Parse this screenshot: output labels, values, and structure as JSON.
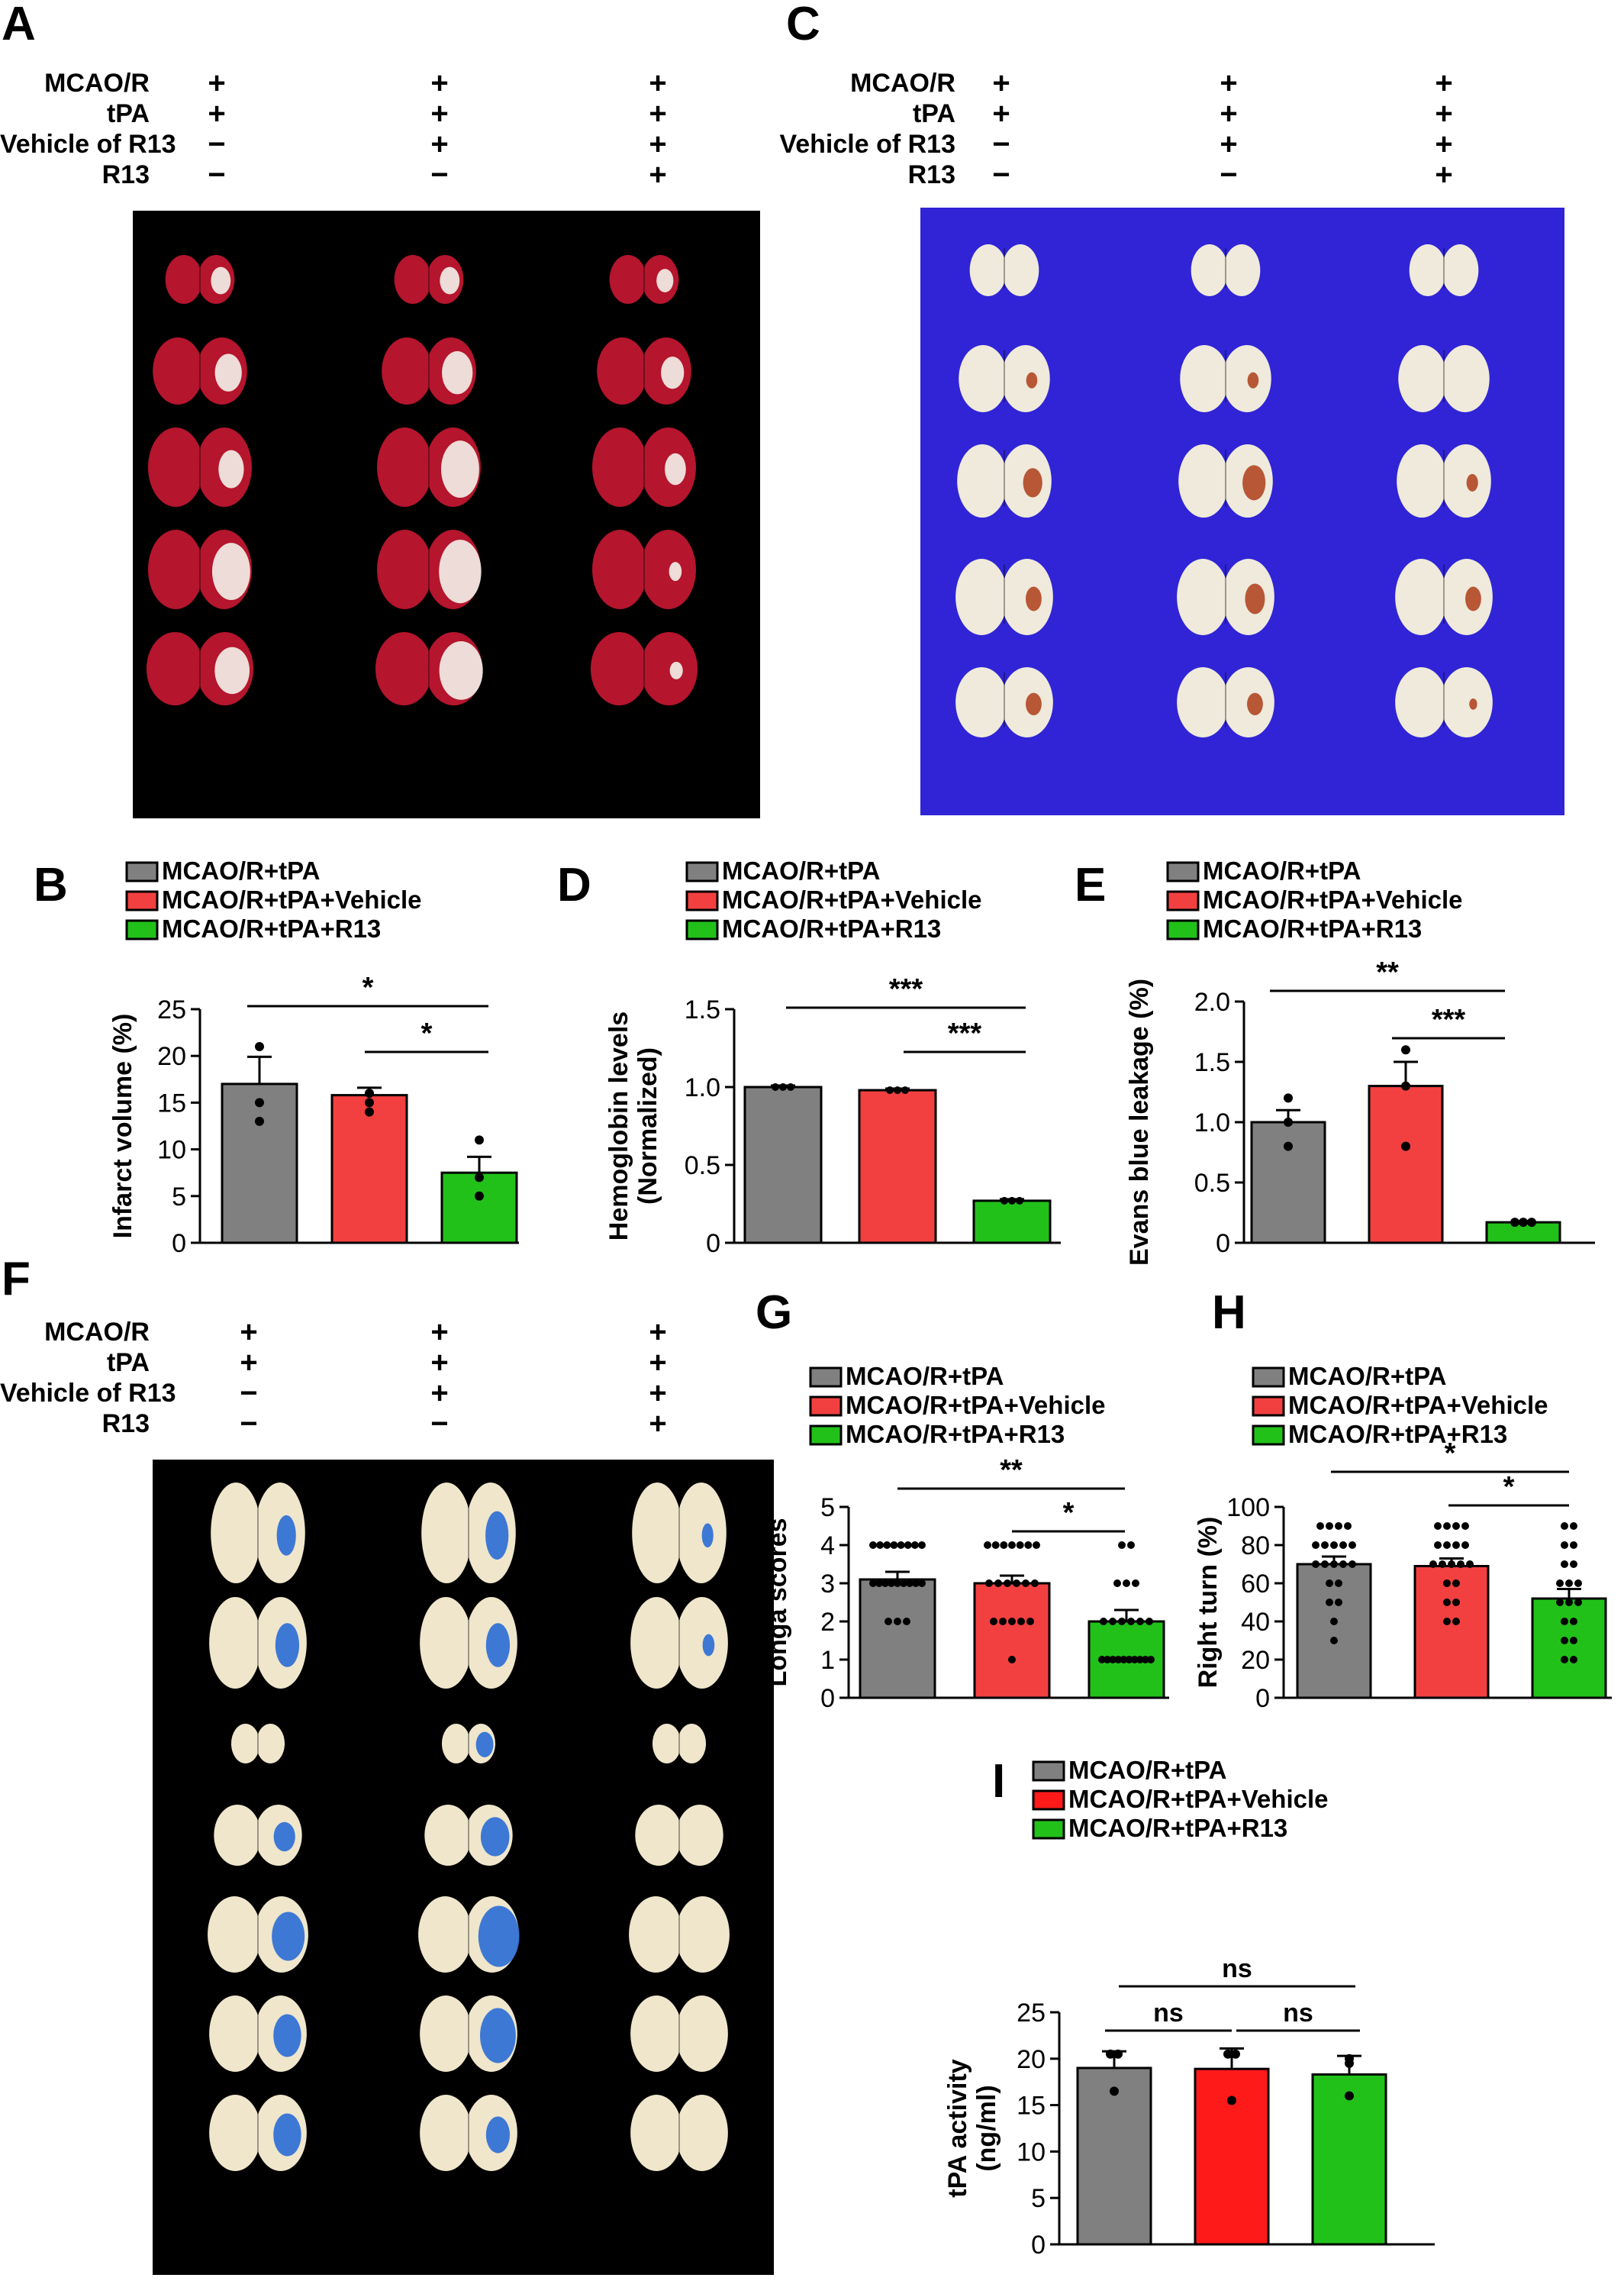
{
  "colors": {
    "gray": "#808080",
    "red": "#f24040",
    "red_bright": "#ff1a1a",
    "green": "#22c11a",
    "black": "#000000",
    "blue_bg": "#3024d6"
  },
  "conditions": {
    "rows": [
      "MCAO/R",
      "tPA",
      "Vehicle of R13",
      "R13"
    ],
    "columns": [
      [
        "+",
        "+",
        "−",
        "−"
      ],
      [
        "+",
        "+",
        "+",
        "−"
      ],
      [
        "+",
        "+",
        "+",
        "+"
      ]
    ]
  },
  "panels": {
    "A": {
      "letter": "A",
      "image": "TTC-stained coronal brain slices"
    },
    "C": {
      "letter": "C",
      "image": "Coronal brain slices showing hemorrhage"
    },
    "F": {
      "letter": "F",
      "image": "Evans blue stained brains and slices"
    }
  },
  "legend": [
    "MCAO/R+tPA",
    "MCAO/R+tPA+Vehicle",
    "MCAO/R+tPA+R13"
  ],
  "chart_data": [
    {
      "id": "B",
      "letter": "B",
      "type": "bar",
      "categories": [
        "MCAO/R+tPA",
        "MCAO/R+tPA+Vehicle",
        "MCAO/R+tPA+R13"
      ],
      "values": [
        17.0,
        15.8,
        7.5
      ],
      "errors": [
        2.9,
        0.8,
        1.7
      ],
      "points": [
        [
          21,
          15,
          13
        ],
        [
          16,
          15,
          14
        ],
        [
          11,
          7,
          5
        ]
      ],
      "ylabel": "Infarct volume (%)",
      "ylabel2": "",
      "ylim": [
        0,
        25
      ],
      "yticks": [
        "0",
        "5",
        "10",
        "15",
        "20",
        "25"
      ],
      "sig": [
        {
          "from": 0,
          "to": 2,
          "label": "*"
        },
        {
          "from": 1,
          "to": 2,
          "label": "*"
        }
      ]
    },
    {
      "id": "D",
      "letter": "D",
      "type": "bar",
      "categories": [
        "MCAO/R+tPA",
        "MCAO/R+tPA+Vehicle",
        "MCAO/R+tPA+R13"
      ],
      "values": [
        1.0,
        0.98,
        0.27
      ],
      "errors": [
        0.01,
        0.01,
        0.01
      ],
      "points": [
        [
          1.0,
          1.0,
          1.0
        ],
        [
          0.98,
          0.98,
          0.98
        ],
        [
          0.27,
          0.27,
          0.27
        ]
      ],
      "ylabel": "Hemoglobin levels",
      "ylabel2": "(Normalized)",
      "ylim": [
        0,
        1.5
      ],
      "yticks": [
        "0",
        "0.5",
        "1.0",
        "1.5"
      ],
      "sig": [
        {
          "from": 0,
          "to": 2,
          "label": "***"
        },
        {
          "from": 1,
          "to": 2,
          "label": "***"
        }
      ]
    },
    {
      "id": "E",
      "letter": "E",
      "type": "bar",
      "categories": [
        "MCAO/R+tPA",
        "MCAO/R+tPA+Vehicle",
        "MCAO/R+tPA+R13"
      ],
      "values": [
        1.0,
        1.3,
        0.17
      ],
      "errors": [
        0.1,
        0.2,
        0.01
      ],
      "points": [
        [
          1.2,
          1.0,
          0.8
        ],
        [
          1.6,
          1.3,
          0.8
        ],
        [
          0.17,
          0.17,
          0.17
        ]
      ],
      "ylabel": "Evans blue leakage (%)",
      "ylabel2": "",
      "ylim": [
        0,
        2.0
      ],
      "yticks": [
        "0",
        "0.5",
        "1.0",
        "1.5",
        "2.0"
      ],
      "sig": [
        {
          "from": 0,
          "to": 2,
          "label": "**"
        },
        {
          "from": 1,
          "to": 2,
          "label": "***"
        }
      ]
    },
    {
      "id": "G",
      "letter": "G",
      "type": "bar",
      "categories": [
        "MCAO/R+tPA",
        "MCAO/R+tPA+Vehicle",
        "MCAO/R+tPA+R13"
      ],
      "values": [
        3.1,
        3.0,
        2.0
      ],
      "errors": [
        0.2,
        0.2,
        0.3
      ],
      "points": [
        [
          4,
          4,
          4,
          4,
          4,
          4,
          4,
          4,
          3,
          3,
          3,
          3,
          3,
          3,
          3,
          3,
          3,
          2,
          2,
          2
        ],
        [
          4,
          4,
          4,
          4,
          4,
          4,
          4,
          3,
          3,
          3,
          3,
          3,
          3,
          2,
          2,
          2,
          2,
          2,
          1
        ],
        [
          4,
          4,
          3,
          3,
          3,
          2,
          2,
          2,
          2,
          2,
          2,
          1,
          1,
          1,
          1,
          1,
          1,
          1,
          1,
          1,
          1
        ]
      ],
      "ylabel": "Longa scores",
      "ylabel2": "",
      "ylim": [
        0,
        5
      ],
      "yticks": [
        "0",
        "1",
        "2",
        "3",
        "4",
        "5"
      ],
      "sig": [
        {
          "from": 0,
          "to": 2,
          "label": "**"
        },
        {
          "from": 1,
          "to": 2,
          "label": "*"
        }
      ]
    },
    {
      "id": "H",
      "letter": "H",
      "type": "bar",
      "categories": [
        "MCAO/R+tPA",
        "MCAO/R+tPA+Vehicle",
        "MCAO/R+tPA+R13"
      ],
      "values": [
        70,
        69,
        52
      ],
      "errors": [
        4,
        4,
        5
      ],
      "points": [
        [
          90,
          90,
          90,
          90,
          80,
          80,
          80,
          80,
          80,
          70,
          70,
          70,
          70,
          70,
          60,
          60,
          50,
          50,
          40,
          30
        ],
        [
          90,
          90,
          90,
          90,
          80,
          80,
          80,
          80,
          70,
          70,
          70,
          70,
          70,
          60,
          60,
          50,
          50,
          40,
          40
        ],
        [
          90,
          90,
          80,
          80,
          70,
          70,
          60,
          60,
          60,
          50,
          50,
          50,
          40,
          40,
          30,
          30,
          20,
          20
        ]
      ],
      "ylabel": "Right turn (%)",
      "ylabel2": "",
      "ylim": [
        0,
        100
      ],
      "yticks": [
        "0",
        "20",
        "40",
        "60",
        "80",
        "100"
      ],
      "sig": [
        {
          "from": 0,
          "to": 2,
          "label": "*"
        },
        {
          "from": 1,
          "to": 2,
          "label": "*"
        }
      ]
    },
    {
      "id": "I",
      "letter": "I",
      "type": "bar",
      "categories": [
        "MCAO/R+tPA",
        "MCAO/R+tPA+Vehicle",
        "MCAO/R+tPA+R13"
      ],
      "values": [
        19.0,
        18.9,
        18.3
      ],
      "errors": [
        1.8,
        2.2,
        2.0
      ],
      "points": [
        [
          20.5,
          20.5,
          16.5
        ],
        [
          20.5,
          20.5,
          15.5
        ],
        [
          20,
          19.5,
          16
        ]
      ],
      "ylabel": "tPA activity",
      "ylabel2": "(ng/ml)",
      "ylim": [
        0,
        25
      ],
      "yticks": [
        "0",
        "5",
        "10",
        "15",
        "20",
        "25"
      ],
      "sig": [
        {
          "from": 0,
          "to": 2,
          "label": "ns"
        },
        {
          "from": 0,
          "to": 1,
          "label": "ns"
        },
        {
          "from": 1,
          "to": 2,
          "label": "ns"
        }
      ]
    }
  ]
}
